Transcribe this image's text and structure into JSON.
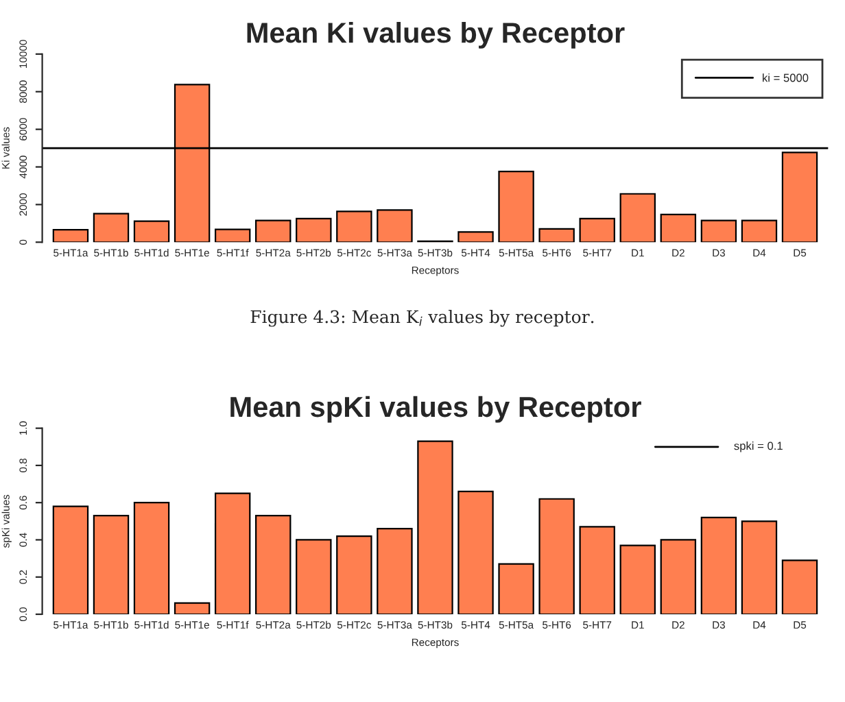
{
  "chart_data": [
    {
      "type": "bar",
      "title": "Mean Ki values by Receptor",
      "xlabel": "Receptors",
      "ylabel": "Ki values",
      "categories": [
        "5-HT1a",
        "5-HT1b",
        "5-HT1d",
        "5-HT1e",
        "5-HT1f",
        "5-HT2a",
        "5-HT2b",
        "5-HT2c",
        "5-HT3a",
        "5-HT3b",
        "5-HT4",
        "5-HT5a",
        "5-HT6",
        "5-HT7",
        "D1",
        "D2",
        "D3",
        "D4",
        "D5"
      ],
      "values": [
        660,
        1520,
        1120,
        8380,
        680,
        1150,
        1250,
        1640,
        1710,
        50,
        540,
        3760,
        710,
        1250,
        2570,
        1470,
        1150,
        1150,
        4770
      ],
      "color": "#ff7f50",
      "ylim": [
        0,
        10000
      ],
      "yticks": [
        0,
        2000,
        4000,
        6000,
        8000,
        10000
      ],
      "ref_lines": [
        {
          "axis": "y",
          "value": 5000,
          "label": "ki = 5000",
          "color": "#000000"
        }
      ],
      "legend": "top right",
      "annotations": [
        "Figure 4.3: Mean K$_{i}$ values by receptor."
      ]
    },
    {
      "type": "bar",
      "title": "Mean spKi values by Receptor",
      "xlabel": "Receptors",
      "ylabel": "spKi values",
      "categories": [
        "5-HT1a",
        "5-HT1b",
        "5-HT1d",
        "5-HT1e",
        "5-HT1f",
        "5-HT2a",
        "5-HT2b",
        "5-HT2c",
        "5-HT3a",
        "5-HT3b",
        "5-HT4",
        "5-HT5a",
        "5-HT6",
        "5-HT7",
        "D1",
        "D2",
        "D3",
        "D4",
        "D5"
      ],
      "values": [
        0.58,
        0.53,
        0.6,
        0.06,
        0.65,
        0.53,
        0.4,
        0.42,
        0.46,
        0.93,
        0.66,
        0.27,
        0.62,
        0.47,
        0.37,
        0.4,
        0.52,
        0.5,
        0.29
      ],
      "color": "#ff7f50",
      "ylim": [
        0,
        1.0
      ],
      "yticks": [
        {
          "value": 0,
          "label": "0.0"
        },
        0.2,
        0.4,
        0.6,
        0.8,
        {
          "value": 1.0,
          "label": "1.0"
        }
      ],
      "annotations": [
        "spki = 0.1"
      ]
    }
  ]
}
